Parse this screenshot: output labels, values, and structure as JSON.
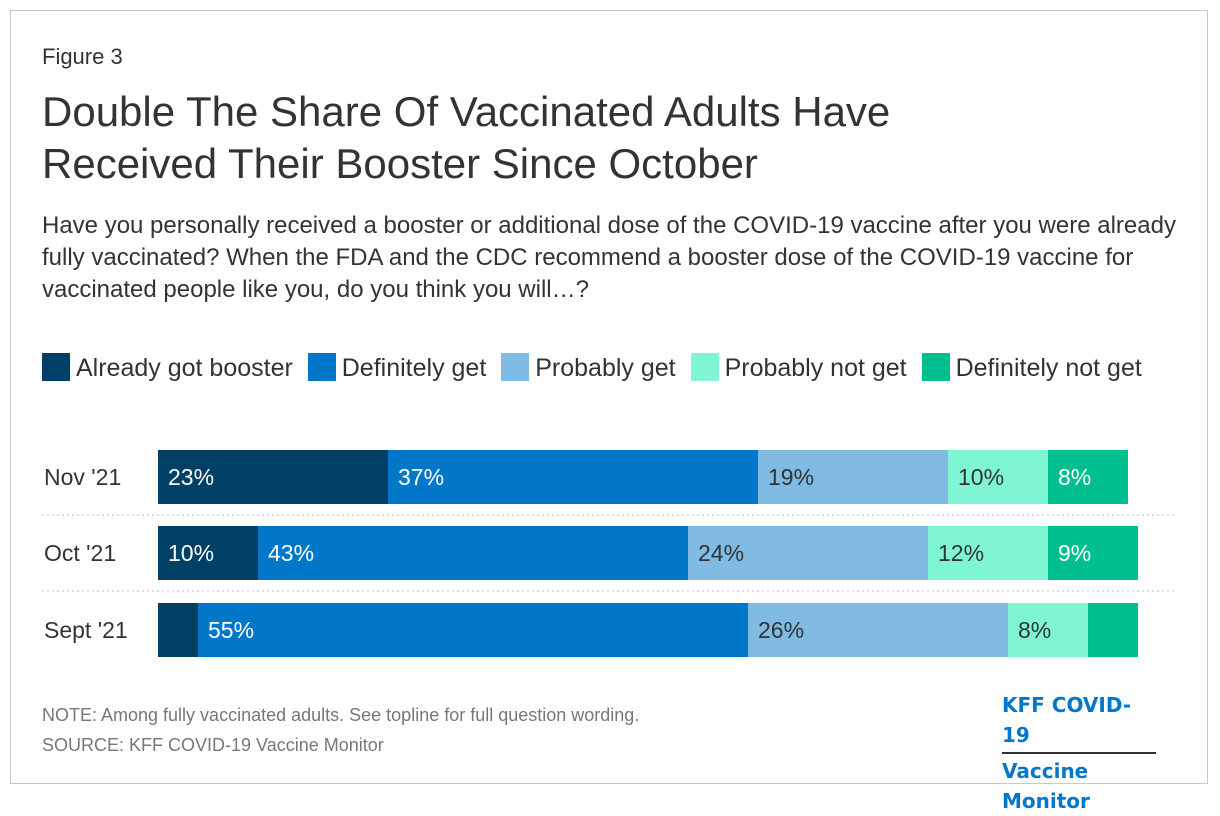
{
  "figure_label": "Figure 3",
  "title_lines": [
    "Double The Share Of Vaccinated Adults Have",
    "Received Their Booster Since October"
  ],
  "subtitle": "Have you personally received a booster or additional dose of the COVID-19 vaccine after you were already fully vaccinated? When the FDA and the CDC recommend a booster dose of the COVID-19 vaccine for vaccinated people like you, do you think you will…?",
  "note": "NOTE: Among fully vaccinated adults. See topline for full question wording.",
  "source": "SOURCE: KFF COVID-19 Vaccine Monitor",
  "logo": {
    "line1": "KFF COVID-19",
    "line2": "Vaccine Monitor"
  },
  "chart_data": {
    "type": "bar",
    "orientation": "horizontal",
    "stacked": true,
    "title": "Double The Share Of Vaccinated Adults Have Received Their Booster Since October",
    "categories": [
      "Nov '21",
      "Oct '21",
      "Sept '21"
    ],
    "series": [
      {
        "name": "Already got booster",
        "color": "#003f66",
        "values": [
          23,
          10,
          4
        ],
        "labels": [
          "23%",
          "10%",
          ""
        ]
      },
      {
        "name": "Definitely get",
        "color": "#0077c8",
        "values": [
          37,
          43,
          55
        ],
        "labels": [
          "37%",
          "43%",
          "55%"
        ]
      },
      {
        "name": "Probably get",
        "color": "#7fbbe3",
        "values": [
          19,
          24,
          26
        ],
        "labels": [
          "19%",
          "24%",
          "26%"
        ]
      },
      {
        "name": "Probably not get",
        "color": "#7ff5d4",
        "values": [
          10,
          12,
          8
        ],
        "labels": [
          "10%",
          "12%",
          "8%"
        ]
      },
      {
        "name": "Definitely not get",
        "color": "#00bf8f",
        "values": [
          8,
          9,
          5
        ],
        "labels": [
          "8%",
          "9%",
          ""
        ]
      }
    ],
    "legend_position": "top",
    "grid": false
  }
}
